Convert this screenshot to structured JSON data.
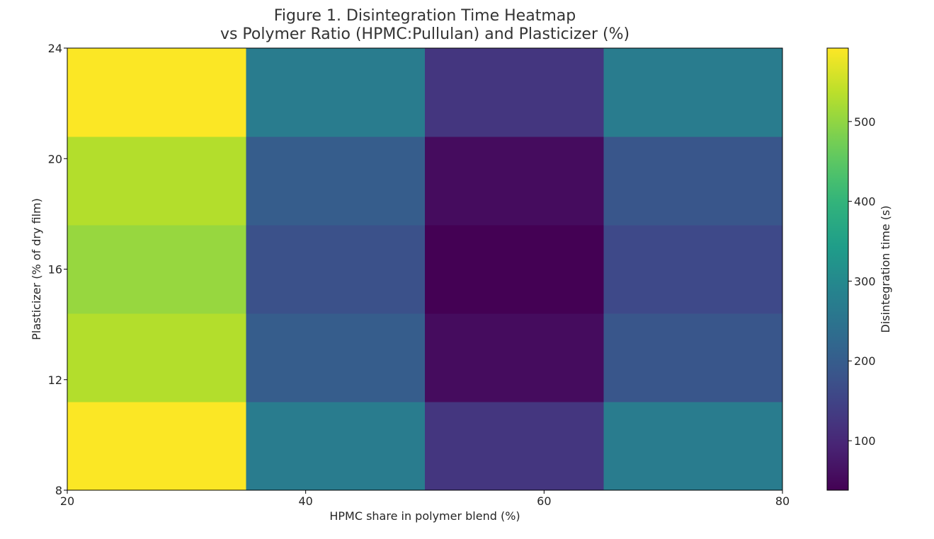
{
  "chart_data": {
    "type": "heatmap",
    "title_lines": [
      "Figure 1. Disintegration Time Heatmap",
      "vs Polymer Ratio (HPMC:Pullulan) and Plasticizer (%)"
    ],
    "xlabel": "HPMC share in polymer blend (%)",
    "ylabel": "Plasticizer (% of dry film)",
    "colorbar_label": "Disintegration time (s)",
    "colormap": "viridis",
    "xlim": [
      20,
      80
    ],
    "ylim": [
      8,
      24
    ],
    "xticks": [
      20,
      40,
      60,
      80
    ],
    "yticks": [
      8,
      12,
      16,
      20,
      24
    ],
    "colorbar_range": [
      38,
      592
    ],
    "colorbar_ticks": [
      100,
      200,
      300,
      400,
      500
    ],
    "x_edges": [
      20,
      35,
      50,
      65,
      80
    ],
    "y_edges": [
      8,
      11.2,
      14.4,
      17.6,
      20.8,
      24
    ],
    "x_centers": [
      27.5,
      42.5,
      57.5,
      72.5
    ],
    "y_centers": [
      9.6,
      12.8,
      16,
      19.2,
      22.4
    ],
    "values": [
      [
        590,
        270,
        125,
        270
      ],
      [
        530,
        200,
        55,
        185
      ],
      [
        505,
        175,
        38,
        160
      ],
      [
        530,
        200,
        55,
        185
      ],
      [
        590,
        270,
        125,
        270
      ]
    ]
  }
}
